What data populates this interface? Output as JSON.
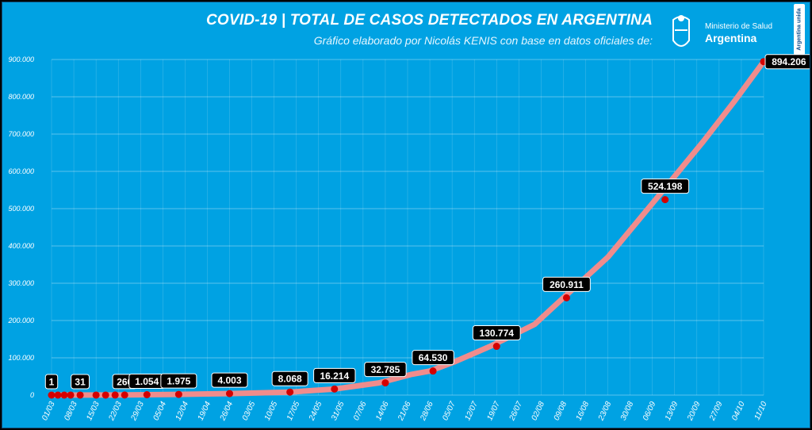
{
  "header": {
    "title": "COVID-19  |  TOTAL DE CASOS DETECTADOS EN ARGENTINA",
    "subtitle": "Gráfico elaborado por Nicolás KENIS con base en datos oficiales de:",
    "logo_line1": "Ministerio de Salud",
    "logo_line2": "Argentina",
    "side_tag": "Argentina unida"
  },
  "colors": {
    "background": "#00a2e3",
    "line": "#f08c8c",
    "marker": "#d40000",
    "grid": "#ffffff"
  },
  "chart_data": {
    "type": "line",
    "title": "COVID-19  |  TOTAL DE CASOS DETECTADOS EN ARGENTINA",
    "ylim": [
      0,
      900000
    ],
    "y_ticks": [
      "0",
      "100.000",
      "200.000",
      "300.000",
      "400.000",
      "500.000",
      "600.000",
      "700.000",
      "800.000",
      "900.000"
    ],
    "x_ticks": [
      "01/03",
      "08/03",
      "15/03",
      "22/03",
      "29/03",
      "05/04",
      "12/04",
      "19/04",
      "26/04",
      "03/05",
      "10/05",
      "17/05",
      "24/05",
      "31/05",
      "07/06",
      "14/06",
      "21/06",
      "28/06",
      "05/07",
      "12/07",
      "19/07",
      "26/07",
      "02/08",
      "09/08",
      "16/08",
      "23/08",
      "30/08",
      "06/09",
      "13/09",
      "20/09",
      "27/09",
      "04/10",
      "11/10"
    ],
    "grid": true,
    "curve": [
      {
        "day": 0,
        "value": 0
      },
      {
        "day": 21,
        "value": 266
      },
      {
        "day": 30,
        "value": 1054
      },
      {
        "day": 40,
        "value": 1975
      },
      {
        "day": 56,
        "value": 4003
      },
      {
        "day": 75,
        "value": 8068
      },
      {
        "day": 89,
        "value": 16214
      },
      {
        "day": 103,
        "value": 32785
      },
      {
        "day": 113,
        "value": 55000
      },
      {
        "day": 119,
        "value": 64530
      },
      {
        "day": 127,
        "value": 90000
      },
      {
        "day": 138,
        "value": 130774
      },
      {
        "day": 152,
        "value": 190000
      },
      {
        "day": 161,
        "value": 260911
      },
      {
        "day": 175,
        "value": 370000
      },
      {
        "day": 190,
        "value": 524198
      },
      {
        "day": 205,
        "value": 680000
      },
      {
        "day": 215,
        "value": 790000
      },
      {
        "day": 224,
        "value": 894206
      }
    ],
    "markers": [
      {
        "day": 0,
        "value": 1,
        "label": "1"
      },
      {
        "day": 2,
        "value": 2,
        "label": ""
      },
      {
        "day": 4,
        "value": 9,
        "label": ""
      },
      {
        "day": 6,
        "value": 12,
        "label": ""
      },
      {
        "day": 9,
        "value": 31,
        "label": "31"
      },
      {
        "day": 14,
        "value": 65,
        "label": ""
      },
      {
        "day": 17,
        "value": 128,
        "label": ""
      },
      {
        "day": 20,
        "value": 225,
        "label": ""
      },
      {
        "day": 23,
        "value": 266,
        "label": "266"
      },
      {
        "day": 30,
        "value": 1054,
        "label": "1.054"
      },
      {
        "day": 40,
        "value": 1975,
        "label": "1.975"
      },
      {
        "day": 56,
        "value": 4003,
        "label": "4.003"
      },
      {
        "day": 75,
        "value": 8068,
        "label": "8.068"
      },
      {
        "day": 89,
        "value": 16214,
        "label": "16.214"
      },
      {
        "day": 105,
        "value": 32785,
        "label": "32.785"
      },
      {
        "day": 120,
        "value": 64530,
        "label": "64.530"
      },
      {
        "day": 140,
        "value": 130774,
        "label": "130.774"
      },
      {
        "day": 162,
        "value": 260911,
        "label": "260.911"
      },
      {
        "day": 193,
        "value": 524198,
        "label": "524.198"
      },
      {
        "day": 224,
        "value": 894206,
        "label": "894.206"
      }
    ]
  }
}
